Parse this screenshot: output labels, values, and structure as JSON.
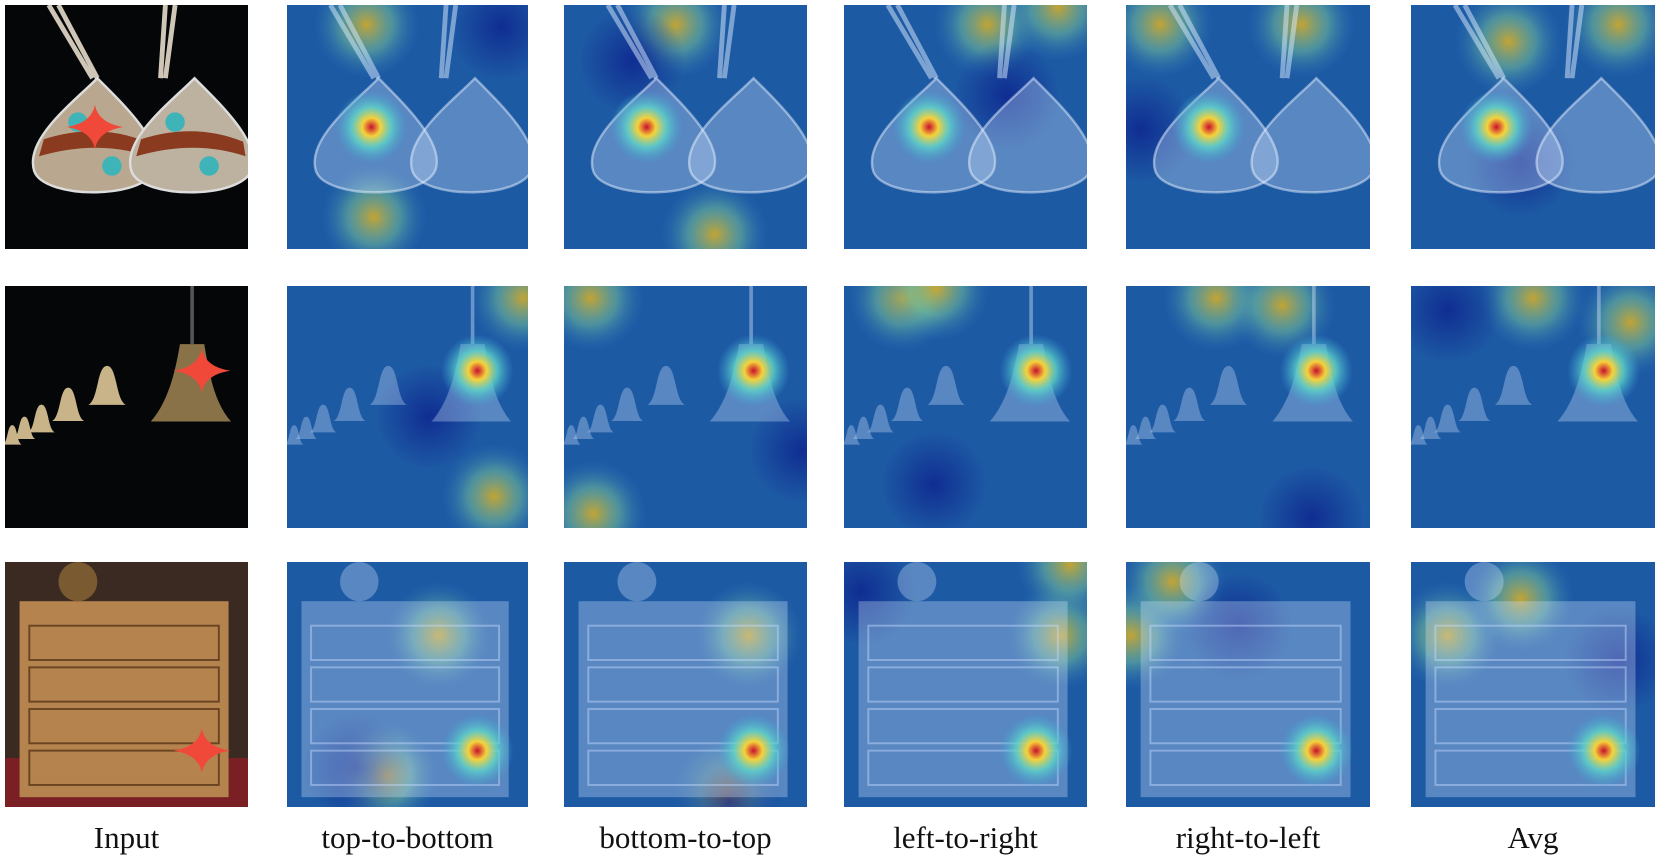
{
  "columns": [
    "Input",
    "top-to-bottom",
    "bottom-to-top",
    "left-to-right",
    "right-to-left",
    "Avg"
  ]
}
